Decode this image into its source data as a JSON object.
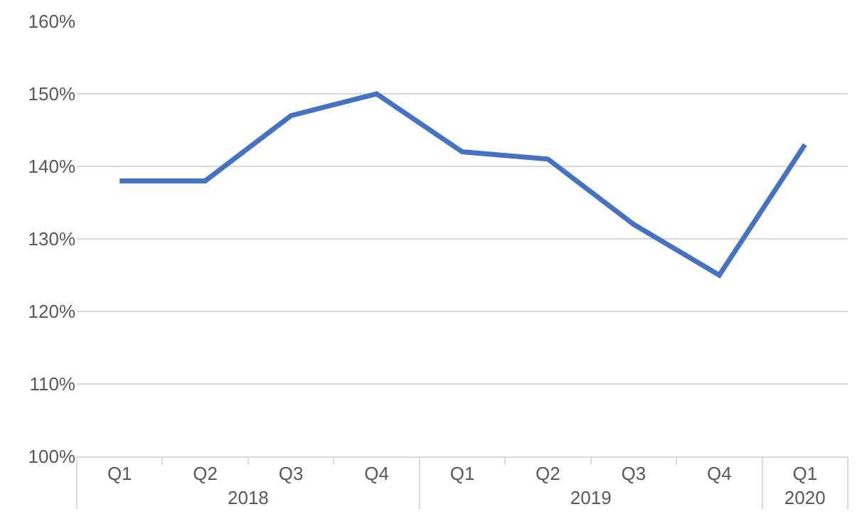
{
  "chart_data": {
    "type": "line",
    "categories": [
      "Q1",
      "Q2",
      "Q3",
      "Q4",
      "Q1",
      "Q2",
      "Q3",
      "Q4",
      "Q1"
    ],
    "annotations": [
      "2018",
      "2019",
      "2020"
    ],
    "series": [
      {
        "color": "#4472c4",
        "values": [
          138,
          138,
          147,
          150,
          142,
          141,
          132,
          125,
          143
        ]
      }
    ],
    "ylim": [
      100,
      160
    ],
    "yticks": [
      {
        "value": 100,
        "label": "100%"
      },
      {
        "value": 110,
        "label": "110%"
      },
      {
        "value": 120,
        "label": "120%"
      },
      {
        "value": 130,
        "label": "130%"
      },
      {
        "value": 140,
        "label": "140%"
      },
      {
        "value": 150,
        "label": "150%"
      },
      {
        "value": 160,
        "label": "160%"
      }
    ],
    "grid": "y",
    "legend": false,
    "marker": "none",
    "line_style": "solid"
  }
}
